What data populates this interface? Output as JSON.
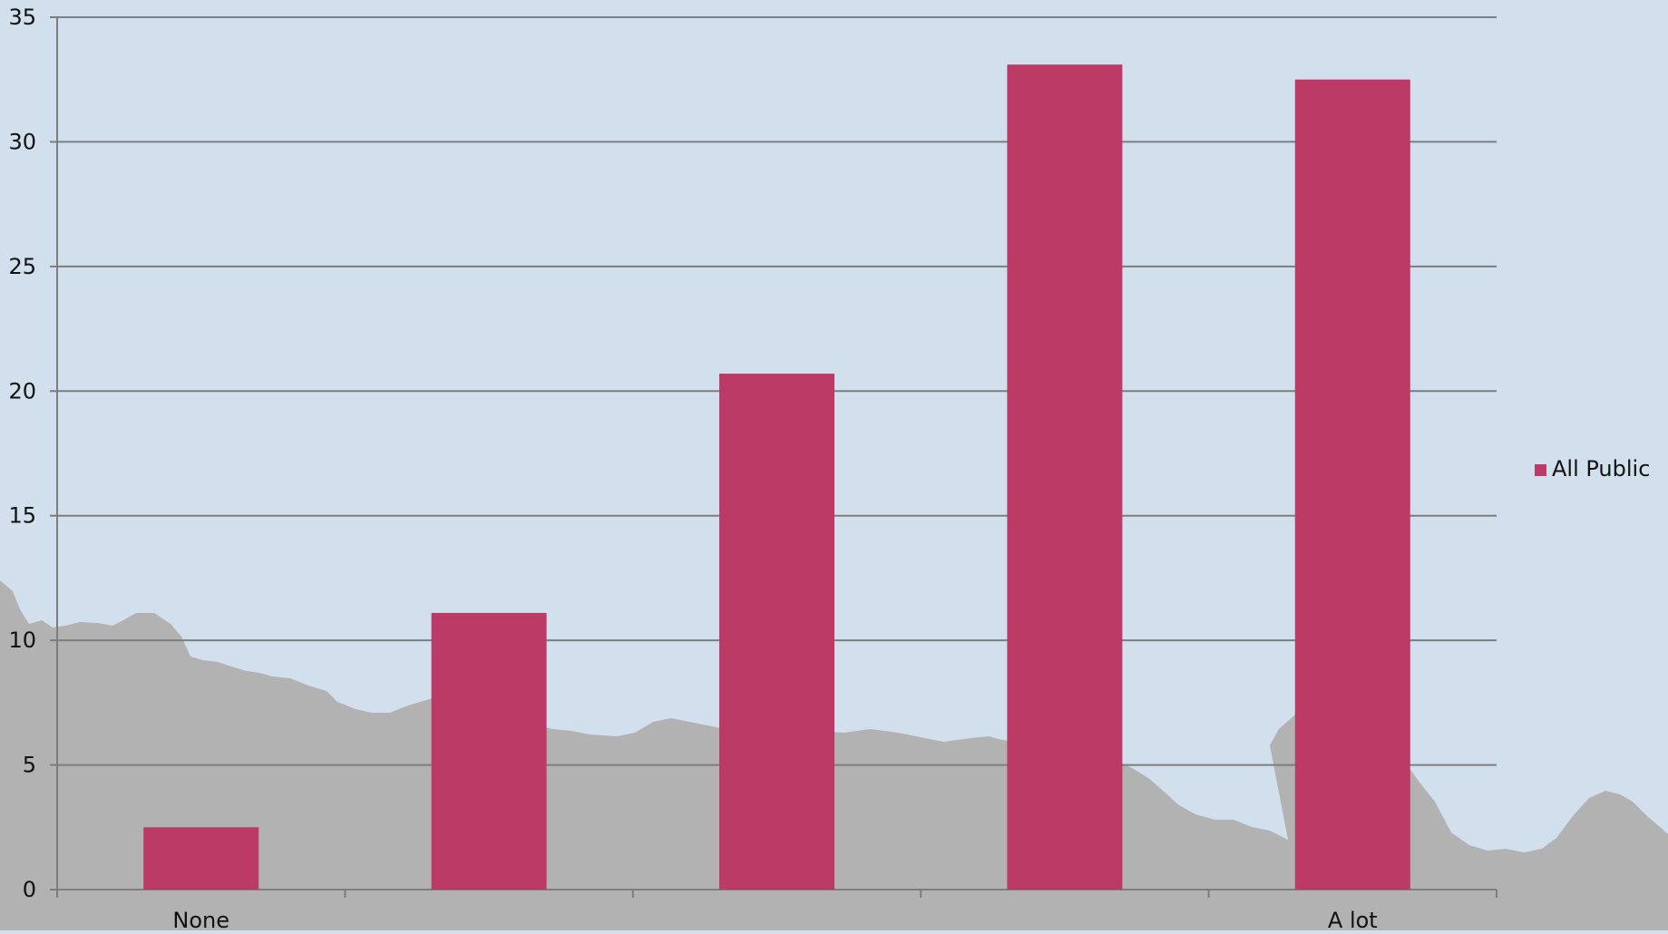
{
  "colors": {
    "background": "#d2e0ee",
    "scenery": "#b2b2b2",
    "bar": "#bb3b66",
    "grid": "#7d7d7d",
    "text": "#111111"
  },
  "chart_data": {
    "type": "bar",
    "categories": [
      "None",
      "",
      "",
      "",
      "A lot"
    ],
    "series": [
      {
        "name": "All Public",
        "values": [
          2.5,
          11.1,
          20.7,
          33.1,
          32.5
        ]
      }
    ],
    "ylim": [
      0,
      35
    ],
    "yticks": [
      0,
      5,
      10,
      15,
      20,
      25,
      30,
      35
    ],
    "grid": true,
    "legend_position": "right"
  }
}
